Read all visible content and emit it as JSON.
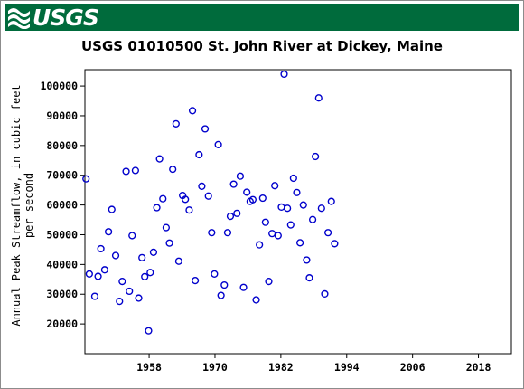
{
  "banner": {
    "logo_text": "USGS",
    "color": "#006b3c"
  },
  "chart_data": {
    "type": "scatter",
    "title": "USGS 01010500 St. John River at Dickey, Maine",
    "ylabel_line1": "Annual Peak Streamflow, in cubic feet",
    "ylabel_line2": "per second",
    "xlabel": "",
    "xlim": [
      1946.3,
      2024.0
    ],
    "ylim": [
      10000,
      105500
    ],
    "x_ticks": [
      1958,
      1970,
      1982,
      1994,
      2006,
      2018
    ],
    "y_ticks": [
      20000,
      30000,
      40000,
      50000,
      60000,
      70000,
      80000,
      90000,
      100000
    ],
    "grid": false,
    "marker": {
      "shape": "open-circle",
      "color": "#0000cc"
    },
    "points": [
      [
        1946.5,
        68800
      ],
      [
        1947.1,
        36800
      ],
      [
        1948.1,
        29300
      ],
      [
        1948.7,
        36000
      ],
      [
        1949.2,
        45300
      ],
      [
        1949.9,
        38200
      ],
      [
        1950.6,
        51000
      ],
      [
        1951.2,
        58500
      ],
      [
        1951.9,
        43000
      ],
      [
        1952.6,
        27600
      ],
      [
        1953.1,
        34300
      ],
      [
        1953.8,
        71300
      ],
      [
        1954.4,
        31000
      ],
      [
        1954.9,
        49700
      ],
      [
        1955.5,
        71600
      ],
      [
        1956.1,
        28700
      ],
      [
        1956.7,
        42300
      ],
      [
        1957.2,
        35900
      ],
      [
        1957.9,
        17700
      ],
      [
        1958.2,
        37300
      ],
      [
        1958.8,
        44100
      ],
      [
        1959.4,
        59100
      ],
      [
        1959.9,
        75500
      ],
      [
        1960.5,
        62100
      ],
      [
        1961.1,
        52400
      ],
      [
        1961.7,
        47200
      ],
      [
        1962.3,
        72000
      ],
      [
        1962.9,
        87300
      ],
      [
        1963.4,
        41100
      ],
      [
        1964.1,
        63200
      ],
      [
        1964.6,
        61900
      ],
      [
        1965.3,
        58300
      ],
      [
        1965.9,
        91700
      ],
      [
        1966.4,
        34600
      ],
      [
        1967.1,
        76900
      ],
      [
        1967.6,
        66300
      ],
      [
        1968.2,
        85600
      ],
      [
        1968.8,
        63000
      ],
      [
        1969.4,
        50700
      ],
      [
        1969.9,
        36800
      ],
      [
        1970.6,
        80300
      ],
      [
        1971.1,
        29600
      ],
      [
        1971.7,
        33100
      ],
      [
        1972.3,
        50700
      ],
      [
        1972.8,
        56200
      ],
      [
        1973.4,
        67000
      ],
      [
        1974.0,
        57200
      ],
      [
        1974.6,
        69700
      ],
      [
        1975.2,
        32300
      ],
      [
        1975.8,
        64300
      ],
      [
        1976.4,
        61200
      ],
      [
        1976.9,
        61800
      ],
      [
        1977.5,
        28100
      ],
      [
        1978.1,
        46600
      ],
      [
        1978.7,
        62300
      ],
      [
        1979.2,
        54200
      ],
      [
        1979.8,
        34300
      ],
      [
        1980.4,
        50400
      ],
      [
        1980.9,
        66500
      ],
      [
        1981.5,
        49700
      ],
      [
        1982.1,
        59300
      ],
      [
        1982.6,
        104000
      ],
      [
        1983.2,
        58900
      ],
      [
        1983.8,
        53300
      ],
      [
        1984.3,
        69000
      ],
      [
        1984.9,
        64200
      ],
      [
        1985.5,
        47300
      ],
      [
        1986.1,
        60000
      ],
      [
        1986.7,
        41500
      ],
      [
        1987.2,
        35500
      ],
      [
        1987.8,
        55100
      ],
      [
        1988.3,
        76300
      ],
      [
        1988.9,
        96000
      ],
      [
        1989.4,
        58900
      ],
      [
        1990.0,
        30100
      ],
      [
        1990.6,
        50700
      ],
      [
        1991.2,
        61200
      ],
      [
        1991.8,
        47000
      ]
    ]
  }
}
